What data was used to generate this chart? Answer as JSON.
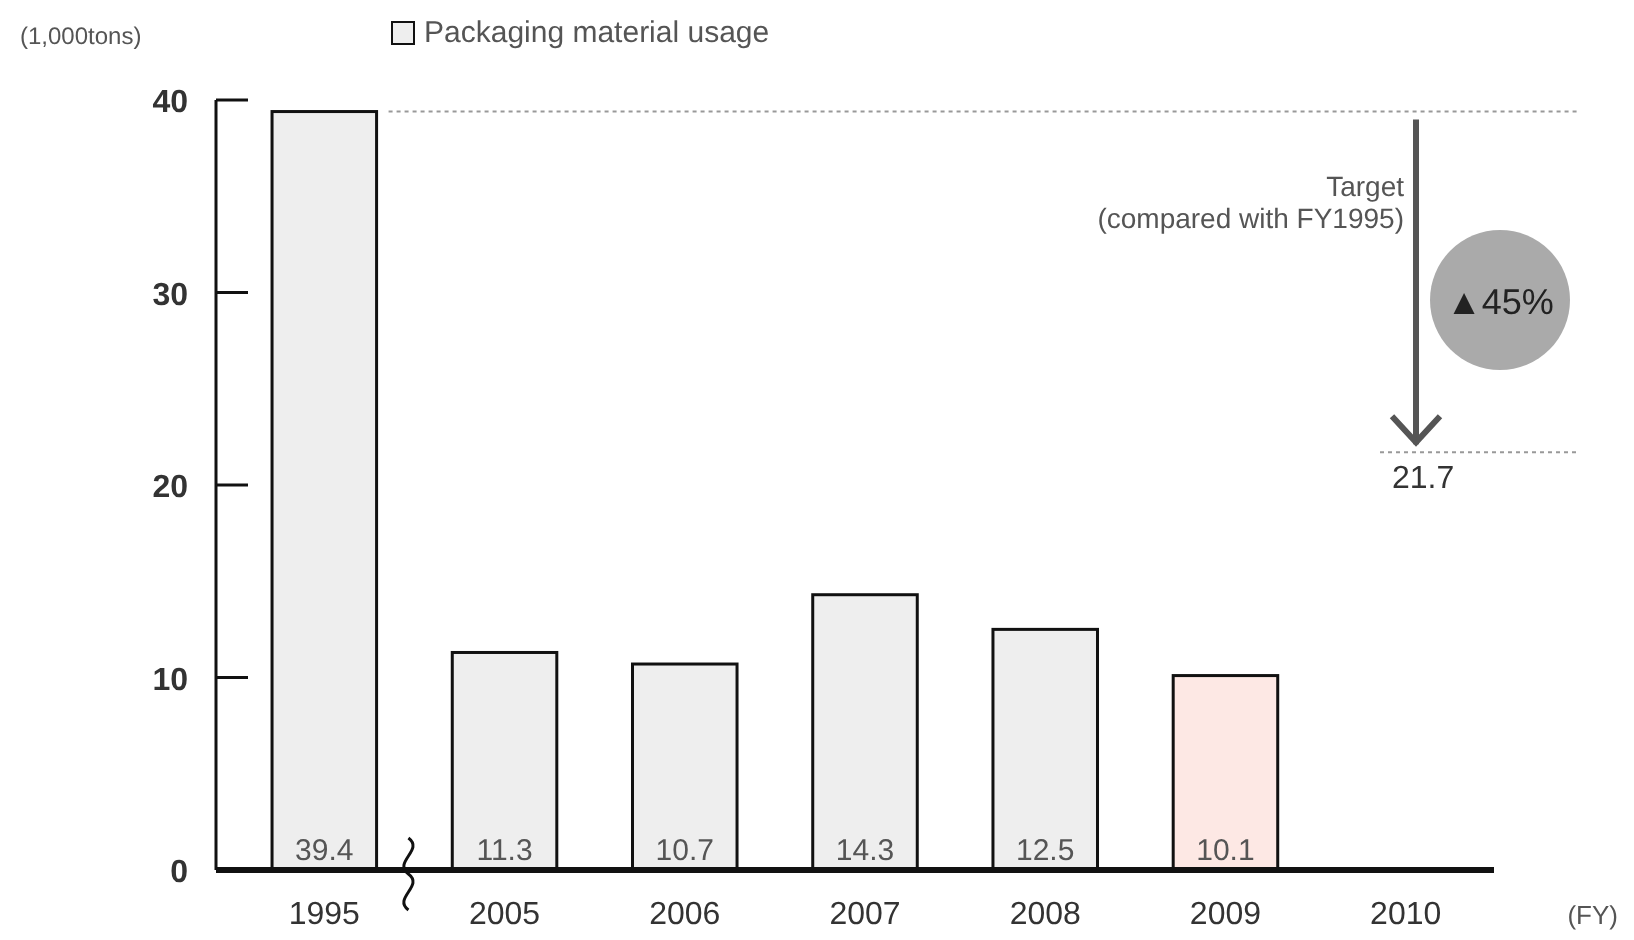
{
  "chart_data": {
    "type": "bar",
    "ylabel": "(1,000tons)",
    "xlabel": "(FY)",
    "categories": [
      "1995",
      "2005",
      "2006",
      "2007",
      "2008",
      "2009",
      "2010"
    ],
    "series": [
      {
        "name": "Packaging material usage",
        "color": "#eeeeee",
        "colors": [
          "#eeeeee",
          "#eeeeee",
          "#eeeeee",
          "#eeeeee",
          "#eeeeee",
          "#fde8e4",
          null
        ],
        "values": [
          39.4,
          11.3,
          10.7,
          14.3,
          12.5,
          10.1,
          null
        ]
      }
    ],
    "ylim": [
      0,
      40
    ],
    "yticks": [
      0,
      10,
      20,
      30,
      40
    ],
    "legend": "top",
    "data_labels": true,
    "ref_lines": [
      {
        "axis": "y",
        "value": 39.4,
        "label": null,
        "line_style": "dotted",
        "color": "#999999"
      },
      {
        "axis": "y",
        "value": 21.7,
        "label": "21.7",
        "line_style": "dotted",
        "color": "#999999"
      }
    ],
    "annotations": [
      "Target\n(compared with FY1995)",
      "▲45%"
    ]
  }
}
